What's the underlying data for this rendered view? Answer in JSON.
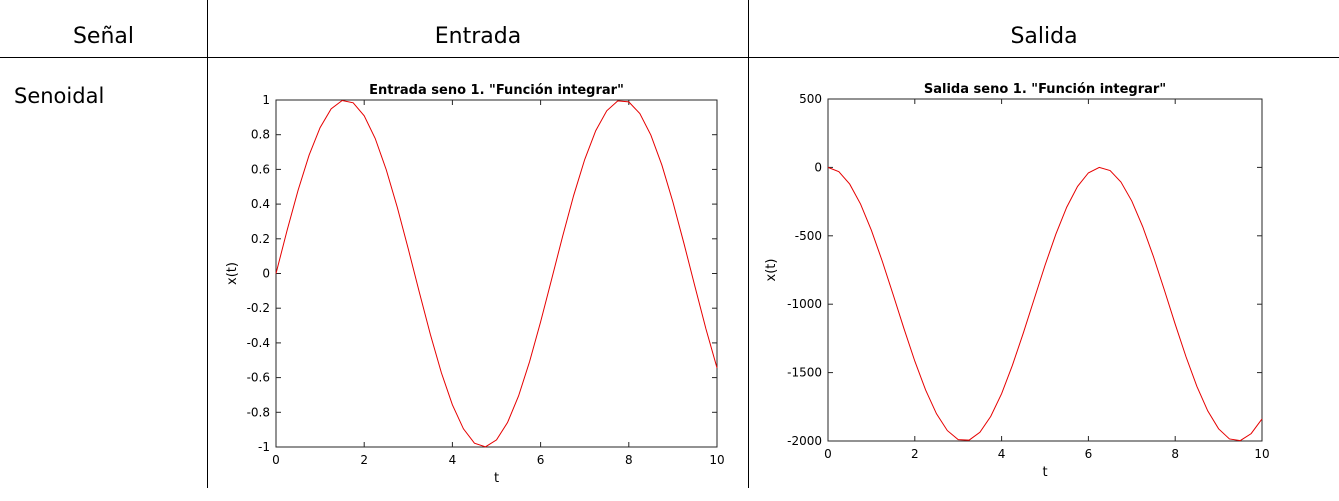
{
  "table": {
    "headers": [
      "Señal",
      "Entrada",
      "Salida"
    ],
    "row_label": "Senoidal"
  },
  "colors": {
    "line": "#e60000",
    "axis": "#262626"
  },
  "chart_data": [
    {
      "type": "line",
      "title": "Entrada seno 1. \"Función integrar\"",
      "xlabel": "t",
      "ylabel": "x(t)",
      "xlim": [
        0,
        10
      ],
      "ylim": [
        -1,
        1
      ],
      "xticks": [
        0,
        2,
        4,
        6,
        8,
        10
      ],
      "xtick_labels": [
        "0",
        "2",
        "4",
        "6",
        "8",
        "10"
      ],
      "yticks": [
        1,
        0.8,
        0.6,
        0.4,
        0.2,
        0,
        -0.2,
        -0.4,
        -0.6,
        -0.8,
        -1
      ],
      "ytick_labels": [
        "1",
        "0.8",
        "0.6",
        "0.4",
        "0.2",
        "0",
        "-0.2",
        "-0.4",
        "-0.6",
        "-0.8",
        "-1"
      ],
      "grid": false,
      "series": [
        {
          "x": [
            0,
            0.25,
            0.5,
            0.75,
            1,
            1.25,
            1.5,
            1.75,
            2,
            2.25,
            2.5,
            2.75,
            3,
            3.25,
            3.5,
            3.75,
            4,
            4.25,
            4.5,
            4.75,
            5,
            5.25,
            5.5,
            5.75,
            6,
            6.25,
            6.5,
            6.75,
            7,
            7.25,
            7.5,
            7.75,
            8,
            8.25,
            8.5,
            8.75,
            9,
            9.25,
            9.5,
            9.75,
            10
          ],
          "y": [
            0,
            0.247,
            0.479,
            0.682,
            0.841,
            0.949,
            0.997,
            0.984,
            0.909,
            0.778,
            0.598,
            0.382,
            0.141,
            -0.108,
            -0.351,
            -0.572,
            -0.757,
            -0.895,
            -0.978,
            -0.999,
            -0.959,
            -0.859,
            -0.706,
            -0.508,
            -0.279,
            -0.033,
            0.215,
            0.45,
            0.657,
            0.823,
            0.938,
            0.995,
            0.989,
            0.922,
            0.798,
            0.625,
            0.412,
            0.174,
            -0.075,
            -0.32,
            -0.544
          ]
        }
      ]
    },
    {
      "type": "line",
      "title": "Salida seno 1. \"Función integrar\"",
      "xlabel": "t",
      "ylabel": "x(t)",
      "xlim": [
        0,
        10
      ],
      "ylim": [
        -2000,
        500
      ],
      "xticks": [
        0,
        2,
        4,
        6,
        8,
        10
      ],
      "xtick_labels": [
        "0",
        "2",
        "4",
        "6",
        "8",
        "10"
      ],
      "yticks": [
        500,
        0,
        -500,
        -1000,
        -1500,
        -2000
      ],
      "ytick_labels": [
        "500",
        "0",
        "-500",
        "-1000",
        "-1500",
        "-2000"
      ],
      "grid": false,
      "series": [
        {
          "x": [
            0,
            0.25,
            0.5,
            0.75,
            1,
            1.25,
            1.5,
            1.75,
            2,
            2.25,
            2.5,
            2.75,
            3,
            3.25,
            3.5,
            3.75,
            4,
            4.25,
            4.5,
            4.75,
            5,
            5.25,
            5.5,
            5.75,
            6,
            6.25,
            6.5,
            6.75,
            7,
            7.25,
            7.5,
            7.75,
            8,
            8.25,
            8.5,
            8.75,
            9,
            9.25,
            9.5,
            9.75,
            10
          ],
          "y": [
            0,
            -31,
            -122,
            -268,
            -460,
            -685,
            -929,
            -1178,
            -1416,
            -1628,
            -1801,
            -1924,
            -1990,
            -1994,
            -1936,
            -1820,
            -1654,
            -1446,
            -1211,
            -963,
            -716,
            -488,
            -291,
            -139,
            -40,
            0,
            -23,
            -107,
            -246,
            -432,
            -653,
            -896,
            -1146,
            -1385,
            -1601,
            -1780,
            -1911,
            -1985,
            -1997,
            -1946,
            -1839
          ]
        }
      ]
    }
  ]
}
